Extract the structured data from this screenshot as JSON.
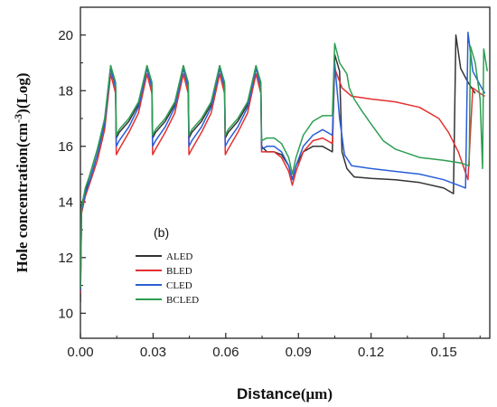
{
  "chart_data": {
    "type": "line",
    "panel_label": "(b)",
    "xlabel": "Distance",
    "xlabel_unit": "(μm)",
    "ylabel": "Hole concentration(cm",
    "ylabel_sup": "-3",
    "ylabel_end": ")(Log)",
    "xlim": [
      0,
      0.169
    ],
    "ylim": [
      9.1,
      21
    ],
    "xticks": [
      0.0,
      0.03,
      0.06,
      0.09,
      0.12,
      0.15
    ],
    "xtick_labels": [
      "0.00",
      "0.03",
      "0.06",
      "0.09",
      "0.12",
      "0.15"
    ],
    "yticks": [
      10,
      12,
      14,
      16,
      18,
      20
    ],
    "ytick_labels": [
      "10",
      "12",
      "14",
      "16",
      "18",
      "20"
    ],
    "legend_position": "lower-left",
    "series": [
      {
        "name": "ALED",
        "color": "#333333",
        "points": [
          [
            0.0,
            10.4
          ],
          [
            0.0005,
            13.9
          ],
          [
            0.002,
            14.4
          ],
          [
            0.004,
            15.0
          ],
          [
            0.007,
            15.9
          ],
          [
            0.01,
            16.9
          ],
          [
            0.0125,
            18.9
          ],
          [
            0.0145,
            18.2
          ],
          [
            0.0148,
            16.3
          ],
          [
            0.016,
            16.5
          ],
          [
            0.02,
            16.9
          ],
          [
            0.024,
            17.5
          ],
          [
            0.0275,
            18.9
          ],
          [
            0.0295,
            18.2
          ],
          [
            0.0298,
            16.3
          ],
          [
            0.031,
            16.5
          ],
          [
            0.035,
            16.9
          ],
          [
            0.039,
            17.5
          ],
          [
            0.0425,
            18.9
          ],
          [
            0.0445,
            18.2
          ],
          [
            0.0448,
            16.3
          ],
          [
            0.046,
            16.5
          ],
          [
            0.05,
            16.9
          ],
          [
            0.054,
            17.5
          ],
          [
            0.0575,
            18.9
          ],
          [
            0.0595,
            18.2
          ],
          [
            0.0598,
            16.3
          ],
          [
            0.061,
            16.5
          ],
          [
            0.065,
            16.9
          ],
          [
            0.069,
            17.5
          ],
          [
            0.0725,
            18.9
          ],
          [
            0.0745,
            18.2
          ],
          [
            0.0748,
            16.0
          ],
          [
            0.077,
            15.8
          ],
          [
            0.08,
            15.8
          ],
          [
            0.083,
            15.7
          ],
          [
            0.086,
            15.3
          ],
          [
            0.0875,
            14.8
          ],
          [
            0.089,
            15.3
          ],
          [
            0.092,
            15.8
          ],
          [
            0.096,
            16.0
          ],
          [
            0.1,
            16.0
          ],
          [
            0.104,
            15.8
          ],
          [
            0.105,
            19.3
          ],
          [
            0.107,
            18.7
          ],
          [
            0.108,
            15.8
          ],
          [
            0.11,
            15.2
          ],
          [
            0.113,
            14.9
          ],
          [
            0.12,
            14.85
          ],
          [
            0.13,
            14.8
          ],
          [
            0.14,
            14.7
          ],
          [
            0.15,
            14.5
          ],
          [
            0.154,
            14.3
          ],
          [
            0.155,
            20.0
          ],
          [
            0.157,
            18.8
          ],
          [
            0.16,
            18.3
          ],
          [
            0.163,
            17.9
          ]
        ]
      },
      {
        "name": "BLED",
        "color": "#e53030",
        "points": [
          [
            0.0,
            10.7
          ],
          [
            0.0005,
            13.6
          ],
          [
            0.002,
            14.2
          ],
          [
            0.004,
            14.7
          ],
          [
            0.007,
            15.5
          ],
          [
            0.01,
            16.6
          ],
          [
            0.0125,
            18.6
          ],
          [
            0.0145,
            17.9
          ],
          [
            0.0148,
            15.7
          ],
          [
            0.016,
            15.9
          ],
          [
            0.02,
            16.5
          ],
          [
            0.024,
            17.2
          ],
          [
            0.0275,
            18.6
          ],
          [
            0.0295,
            17.9
          ],
          [
            0.0298,
            15.7
          ],
          [
            0.031,
            15.9
          ],
          [
            0.035,
            16.5
          ],
          [
            0.039,
            17.2
          ],
          [
            0.0425,
            18.6
          ],
          [
            0.0445,
            17.9
          ],
          [
            0.0448,
            15.7
          ],
          [
            0.046,
            15.9
          ],
          [
            0.05,
            16.5
          ],
          [
            0.054,
            17.2
          ],
          [
            0.0575,
            18.6
          ],
          [
            0.0595,
            17.9
          ],
          [
            0.0598,
            15.7
          ],
          [
            0.061,
            15.9
          ],
          [
            0.065,
            16.5
          ],
          [
            0.069,
            17.2
          ],
          [
            0.0725,
            18.6
          ],
          [
            0.0745,
            17.9
          ],
          [
            0.0748,
            15.8
          ],
          [
            0.077,
            15.8
          ],
          [
            0.08,
            15.8
          ],
          [
            0.083,
            15.6
          ],
          [
            0.086,
            15.1
          ],
          [
            0.0875,
            14.6
          ],
          [
            0.089,
            15.1
          ],
          [
            0.092,
            15.8
          ],
          [
            0.096,
            16.2
          ],
          [
            0.1,
            16.3
          ],
          [
            0.104,
            16.1
          ],
          [
            0.105,
            18.8
          ],
          [
            0.108,
            18.1
          ],
          [
            0.112,
            17.8
          ],
          [
            0.12,
            17.7
          ],
          [
            0.13,
            17.6
          ],
          [
            0.14,
            17.4
          ],
          [
            0.148,
            17.0
          ],
          [
            0.152,
            16.5
          ],
          [
            0.156,
            15.8
          ],
          [
            0.16,
            14.8
          ],
          [
            0.162,
            18.1
          ],
          [
            0.165,
            17.9
          ],
          [
            0.167,
            17.8
          ]
        ]
      },
      {
        "name": "CLED",
        "color": "#2a5fd6",
        "points": [
          [
            0.0,
            10.8
          ],
          [
            0.0005,
            13.7
          ],
          [
            0.002,
            14.3
          ],
          [
            0.004,
            14.8
          ],
          [
            0.007,
            15.7
          ],
          [
            0.01,
            16.8
          ],
          [
            0.0125,
            18.8
          ],
          [
            0.0145,
            18.1
          ],
          [
            0.0148,
            16.0
          ],
          [
            0.016,
            16.2
          ],
          [
            0.02,
            16.7
          ],
          [
            0.024,
            17.4
          ],
          [
            0.0275,
            18.8
          ],
          [
            0.0295,
            18.1
          ],
          [
            0.0298,
            16.0
          ],
          [
            0.031,
            16.2
          ],
          [
            0.035,
            16.7
          ],
          [
            0.039,
            17.4
          ],
          [
            0.0425,
            18.8
          ],
          [
            0.0445,
            18.1
          ],
          [
            0.0448,
            16.0
          ],
          [
            0.046,
            16.2
          ],
          [
            0.05,
            16.7
          ],
          [
            0.054,
            17.4
          ],
          [
            0.0575,
            18.8
          ],
          [
            0.0595,
            18.1
          ],
          [
            0.0598,
            16.0
          ],
          [
            0.061,
            16.2
          ],
          [
            0.065,
            16.7
          ],
          [
            0.069,
            17.4
          ],
          [
            0.0725,
            18.8
          ],
          [
            0.0745,
            18.1
          ],
          [
            0.0748,
            15.9
          ],
          [
            0.077,
            16.0
          ],
          [
            0.08,
            16.0
          ],
          [
            0.083,
            15.8
          ],
          [
            0.086,
            15.3
          ],
          [
            0.0875,
            14.8
          ],
          [
            0.089,
            15.3
          ],
          [
            0.092,
            16.0
          ],
          [
            0.096,
            16.4
          ],
          [
            0.1,
            16.6
          ],
          [
            0.104,
            16.4
          ],
          [
            0.105,
            19.0
          ],
          [
            0.107,
            17.0
          ],
          [
            0.109,
            15.7
          ],
          [
            0.112,
            15.3
          ],
          [
            0.12,
            15.2
          ],
          [
            0.13,
            15.1
          ],
          [
            0.14,
            15.0
          ],
          [
            0.15,
            14.8
          ],
          [
            0.156,
            14.6
          ],
          [
            0.159,
            14.5
          ],
          [
            0.16,
            20.1
          ],
          [
            0.162,
            18.7
          ],
          [
            0.165,
            18.2
          ],
          [
            0.167,
            17.9
          ]
        ]
      },
      {
        "name": "BCLED",
        "color": "#2e9e52",
        "points": [
          [
            0.0,
            10.9
          ],
          [
            0.0005,
            13.8
          ],
          [
            0.002,
            14.5
          ],
          [
            0.004,
            15.0
          ],
          [
            0.007,
            15.9
          ],
          [
            0.01,
            17.0
          ],
          [
            0.0125,
            18.9
          ],
          [
            0.0145,
            18.3
          ],
          [
            0.0148,
            16.4
          ],
          [
            0.016,
            16.6
          ],
          [
            0.02,
            17.0
          ],
          [
            0.024,
            17.6
          ],
          [
            0.0275,
            18.9
          ],
          [
            0.0295,
            18.3
          ],
          [
            0.0298,
            16.4
          ],
          [
            0.031,
            16.6
          ],
          [
            0.035,
            17.0
          ],
          [
            0.039,
            17.6
          ],
          [
            0.0425,
            18.9
          ],
          [
            0.0445,
            18.3
          ],
          [
            0.0448,
            16.4
          ],
          [
            0.046,
            16.6
          ],
          [
            0.05,
            17.0
          ],
          [
            0.054,
            17.6
          ],
          [
            0.0575,
            18.9
          ],
          [
            0.0595,
            18.3
          ],
          [
            0.0598,
            16.4
          ],
          [
            0.061,
            16.6
          ],
          [
            0.065,
            17.0
          ],
          [
            0.069,
            17.6
          ],
          [
            0.0725,
            18.9
          ],
          [
            0.0745,
            18.3
          ],
          [
            0.0748,
            16.2
          ],
          [
            0.077,
            16.3
          ],
          [
            0.08,
            16.3
          ],
          [
            0.083,
            16.1
          ],
          [
            0.086,
            15.6
          ],
          [
            0.0875,
            15.0
          ],
          [
            0.089,
            15.6
          ],
          [
            0.092,
            16.4
          ],
          [
            0.096,
            16.9
          ],
          [
            0.1,
            17.1
          ],
          [
            0.104,
            17.1
          ],
          [
            0.105,
            19.7
          ],
          [
            0.107,
            19.0
          ],
          [
            0.11,
            18.6
          ],
          [
            0.111,
            18.1
          ],
          [
            0.113,
            17.7
          ],
          [
            0.116,
            17.3
          ],
          [
            0.12,
            16.8
          ],
          [
            0.125,
            16.2
          ],
          [
            0.13,
            15.9
          ],
          [
            0.14,
            15.6
          ],
          [
            0.15,
            15.5
          ],
          [
            0.157,
            15.4
          ],
          [
            0.1605,
            15.3
          ],
          [
            0.161,
            19.6
          ],
          [
            0.163,
            19.0
          ],
          [
            0.165,
            17.7
          ],
          [
            0.166,
            15.2
          ],
          [
            0.1665,
            19.5
          ],
          [
            0.168,
            18.7
          ]
        ]
      }
    ]
  }
}
